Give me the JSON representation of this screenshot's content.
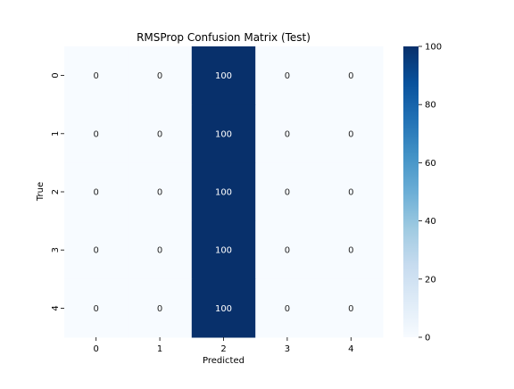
{
  "chart_data": {
    "type": "heatmap",
    "title": "RMSProp Confusion Matrix (Test)",
    "xlabel": "Predicted",
    "ylabel": "True",
    "x_categories": [
      "0",
      "1",
      "2",
      "3",
      "4"
    ],
    "y_categories": [
      "0",
      "1",
      "2",
      "3",
      "4"
    ],
    "values": [
      [
        0,
        0,
        100,
        0,
        0
      ],
      [
        0,
        0,
        100,
        0,
        0
      ],
      [
        0,
        0,
        100,
        0,
        0
      ],
      [
        0,
        0,
        100,
        0,
        0
      ],
      [
        0,
        0,
        100,
        0,
        0
      ]
    ],
    "colorbar": {
      "min": 0,
      "max": 100,
      "ticks": [
        0,
        20,
        40,
        60,
        80,
        100
      ],
      "colormap": "Blues",
      "low_color": "#f7fbff",
      "high_color": "#08306b"
    },
    "annotations": true,
    "grid": false
  }
}
